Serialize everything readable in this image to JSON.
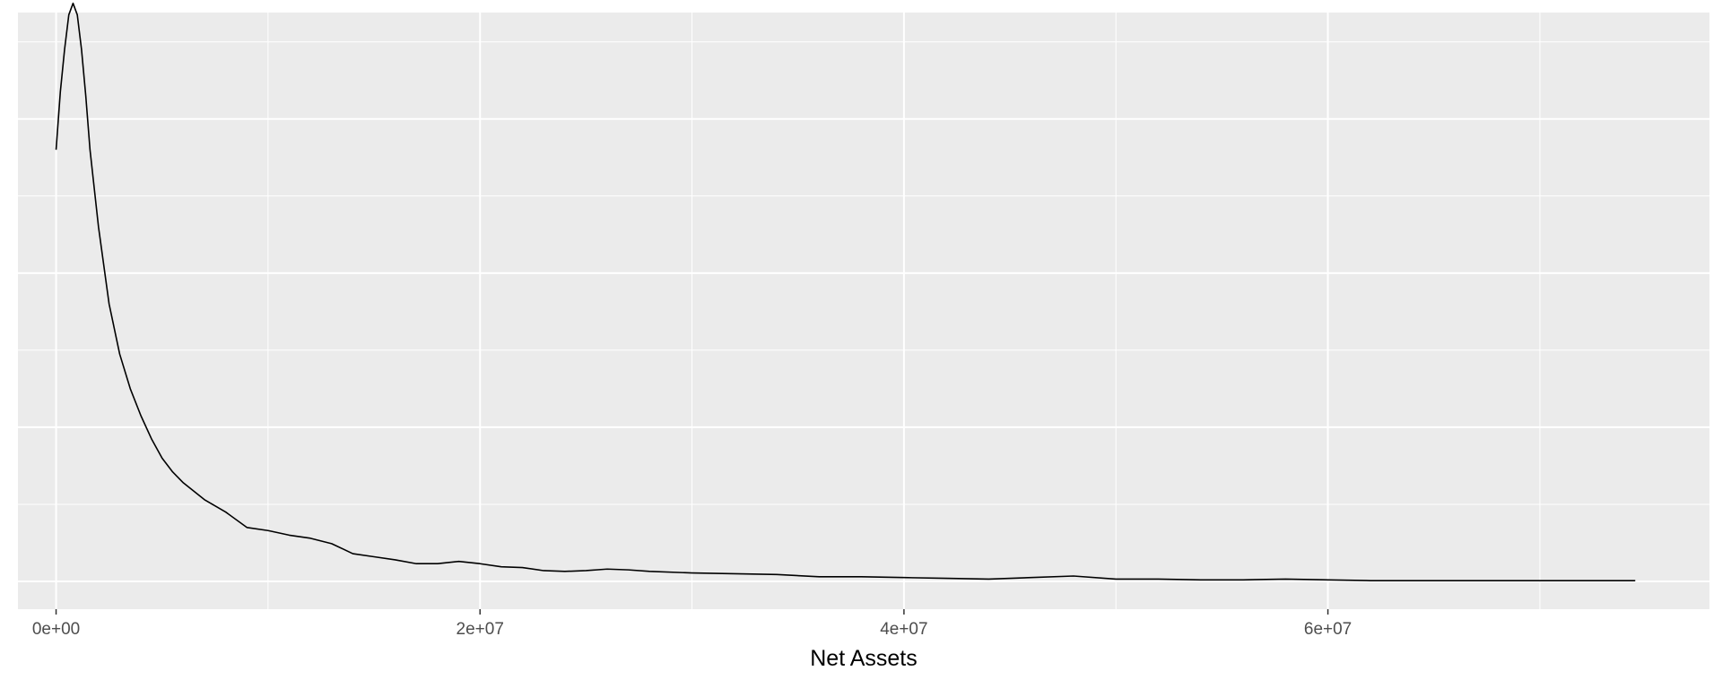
{
  "chart_data": {
    "type": "line",
    "xlabel": "Net Assets",
    "ylabel": "",
    "title": "",
    "grid": true,
    "xlim": [
      -1800000,
      78000000
    ],
    "ylim": [
      -3.6e-09,
      7.38e-08
    ],
    "x_ticks": [
      0,
      20000000,
      40000000,
      60000000
    ],
    "x_tick_labels": [
      "0e+00",
      "2e+07",
      "4e+07",
      "6e+07"
    ],
    "x_minor_ticks": [
      10000000,
      30000000,
      50000000,
      70000000
    ],
    "y_major_ticks": [
      0,
      2e-08,
      4e-08,
      6e-08
    ],
    "y_minor_ticks": [
      1e-08,
      3e-08,
      5e-08,
      7e-08
    ],
    "series": [
      {
        "x": [
          0,
          200000,
          400000,
          600000,
          800000,
          1000000,
          1200000,
          1400000,
          1600000,
          2000000,
          2500000,
          3000000,
          3500000,
          4000000,
          4500000,
          5000000,
          5500000,
          6000000,
          7000000,
          8000000,
          9000000,
          10000000,
          11000000,
          12000000,
          13000000,
          14000000,
          15000000,
          16000000,
          17000000,
          18000000,
          19000000,
          20000000,
          21000000,
          22000000,
          23000000,
          24000000,
          25000000,
          26000000,
          27000000,
          28000000,
          30000000,
          32000000,
          34000000,
          36000000,
          38000000,
          40000000,
          42000000,
          44000000,
          46000000,
          48000000,
          50000000,
          52000000,
          54000000,
          56000000,
          58000000,
          60000000,
          62000000,
          64000000,
          66000000,
          68000000,
          70000000,
          72000000,
          74500000
        ],
        "y": [
          5.6e-08,
          6.35e-08,
          6.9e-08,
          7.35e-08,
          7.5e-08,
          7.35e-08,
          6.9e-08,
          6.3e-08,
          5.6e-08,
          4.6e-08,
          3.6e-08,
          2.95e-08,
          2.5e-08,
          2.15e-08,
          1.85e-08,
          1.6e-08,
          1.42e-08,
          1.28e-08,
          1.06e-08,
          9e-09,
          7e-09,
          6.6e-09,
          6e-09,
          5.6e-09,
          4.9e-09,
          3.6e-09,
          3.2e-09,
          2.8e-09,
          2.3e-09,
          2.3e-09,
          2.6e-09,
          2.3e-09,
          1.9e-09,
          1.8e-09,
          1.4e-09,
          1.3e-09,
          1.4e-09,
          1.6e-09,
          1.5e-09,
          1.3e-09,
          1.1e-09,
          1e-09,
          9e-10,
          6e-10,
          6e-10,
          5e-10,
          4e-10,
          3e-10,
          5e-10,
          7e-10,
          3e-10,
          3e-10,
          2e-10,
          2e-10,
          3e-10,
          2e-10,
          1e-10,
          1e-10,
          1e-10,
          1e-10,
          1e-10,
          1e-10,
          1e-10
        ]
      }
    ]
  }
}
